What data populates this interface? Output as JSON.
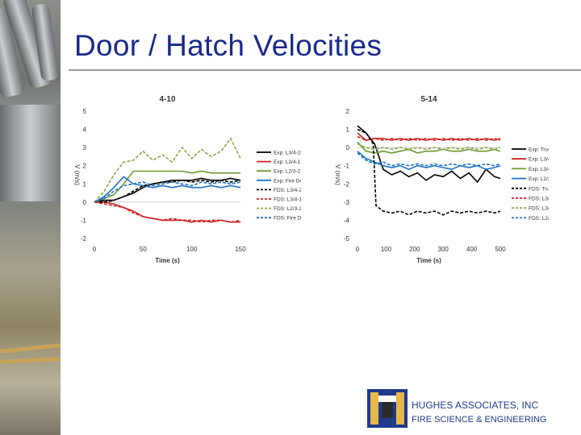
{
  "slide": {
    "title": "Door / Hatch Velocities",
    "company": "HUGHES ASSOCIATES, INC",
    "tagline": "FIRE SCIENCE & ENGINEERING"
  },
  "chart_data": [
    {
      "type": "line",
      "title": "4-10",
      "xlabel": "Time (s)",
      "ylabel": "V (m/s)",
      "xlim": [
        0,
        150
      ],
      "ylim": [
        -2,
        5
      ],
      "xticks": [
        0,
        50,
        100,
        150
      ],
      "yticks": [
        -2,
        -1,
        0,
        1,
        2,
        3,
        4,
        5
      ],
      "legend_position": "right",
      "series": [
        {
          "name": "Exp: L3/4-2B",
          "color": "#000000",
          "dash": false,
          "x": [
            0,
            10,
            20,
            30,
            40,
            50,
            60,
            70,
            80,
            90,
            100,
            110,
            120,
            130,
            140,
            150
          ],
          "y": [
            0,
            0.1,
            0.1,
            0.3,
            0.5,
            0.8,
            1.0,
            1.1,
            1.2,
            1.2,
            1.2,
            1.3,
            1.2,
            1.2,
            1.3,
            1.2
          ]
        },
        {
          "name": "Exp: L3/4-1",
          "color": "#cc1f1f",
          "dash": false,
          "x": [
            0,
            10,
            20,
            30,
            40,
            50,
            60,
            70,
            80,
            90,
            100,
            110,
            120,
            130,
            140,
            150
          ],
          "y": [
            0,
            0,
            -0.1,
            -0.3,
            -0.5,
            -0.8,
            -0.9,
            -1.0,
            -1.0,
            -1.0,
            -1.1,
            -1.0,
            -1.1,
            -1.0,
            -1.1,
            -1.1
          ]
        },
        {
          "name": "Exp: L2/3-2",
          "color": "#6f9a2e",
          "dash": false,
          "x": [
            0,
            10,
            20,
            30,
            40,
            50,
            60,
            70,
            80,
            90,
            100,
            110,
            120,
            130,
            140,
            150
          ],
          "y": [
            0,
            0.2,
            0.4,
            1.0,
            1.7,
            1.7,
            1.7,
            1.7,
            1.7,
            1.7,
            1.6,
            1.7,
            1.6,
            1.6,
            1.6,
            1.6
          ]
        },
        {
          "name": "Exp: Fire Door",
          "color": "#1f72c4",
          "dash": false,
          "x": [
            0,
            10,
            20,
            30,
            40,
            50,
            60,
            70,
            80,
            90,
            100,
            110,
            120,
            130,
            140,
            150
          ],
          "y": [
            0,
            0.3,
            0.8,
            1.4,
            1.0,
            0.9,
            0.8,
            0.9,
            0.8,
            0.9,
            0.8,
            0.8,
            0.9,
            0.8,
            0.9,
            0.8
          ]
        },
        {
          "name": "FDS: L3/4-2B",
          "color": "#000000",
          "dash": true,
          "x": [
            0,
            10,
            20,
            30,
            40,
            50,
            60,
            70,
            80,
            90,
            100,
            110,
            120,
            130,
            140,
            150
          ],
          "y": [
            0,
            0,
            0.1,
            0.3,
            0.6,
            0.9,
            1.0,
            1.1,
            1.1,
            1.2,
            1.1,
            1.2,
            1.1,
            1.2,
            1.1,
            1.2
          ]
        },
        {
          "name": "FDS: L3/4-1",
          "color": "#cc1f1f",
          "dash": true,
          "x": [
            0,
            10,
            20,
            30,
            40,
            50,
            60,
            70,
            80,
            90,
            100,
            110,
            120,
            130,
            140,
            150
          ],
          "y": [
            0,
            -0.1,
            -0.2,
            -0.3,
            -0.6,
            -0.8,
            -0.9,
            -1.0,
            -0.9,
            -1.0,
            -1.0,
            -1.1,
            -1.0,
            -1.0,
            -1.1,
            -1.0
          ]
        },
        {
          "name": "FDS: L2/3-2",
          "color": "#8aa84a",
          "dash": true,
          "x": [
            0,
            10,
            20,
            30,
            40,
            50,
            60,
            70,
            80,
            90,
            100,
            110,
            120,
            130,
            140,
            150
          ],
          "y": [
            0,
            0.6,
            1.5,
            2.2,
            2.3,
            2.8,
            2.3,
            2.6,
            2.2,
            3.0,
            2.4,
            2.9,
            2.5,
            2.8,
            3.5,
            2.4
          ]
        },
        {
          "name": "FDS: Fire Door",
          "color": "#1f72c4",
          "dash": true,
          "x": [
            0,
            10,
            20,
            30,
            40,
            50,
            60,
            70,
            80,
            90,
            100,
            110,
            120,
            130,
            140,
            150
          ],
          "y": [
            0,
            0.2,
            0.6,
            0.9,
            1.0,
            1.1,
            0.9,
            1.0,
            1.1,
            1.0,
            0.9,
            1.1,
            1.0,
            1.1,
            1.0,
            1.1
          ]
        }
      ]
    },
    {
      "type": "line",
      "title": "5-14",
      "xlabel": "Time (s)",
      "ylabel": "V (m/s)",
      "xlim": [
        0,
        500
      ],
      "ylim": [
        -5,
        2
      ],
      "xticks": [
        0,
        100,
        200,
        300,
        400,
        500
      ],
      "yticks": [
        -5,
        -4,
        -3,
        -2,
        -1,
        0,
        1,
        2
      ],
      "legend_position": "right",
      "series": [
        {
          "name": "Exp: Trunk2 Out",
          "color": "#000000",
          "dash": false,
          "x": [
            0,
            30,
            60,
            90,
            120,
            150,
            180,
            210,
            240,
            270,
            300,
            330,
            360,
            390,
            420,
            450,
            480,
            500
          ],
          "y": [
            1.2,
            0.8,
            0.2,
            -1.2,
            -1.5,
            -1.3,
            -1.6,
            -1.4,
            -1.8,
            -1.5,
            -1.6,
            -1.3,
            -1.7,
            -1.4,
            -1.9,
            -1.2,
            -1.6,
            -1.7
          ]
        },
        {
          "name": "Exp: L3/4-2B",
          "color": "#cc1f1f",
          "dash": false,
          "x": [
            0,
            30,
            60,
            90,
            120,
            150,
            180,
            210,
            240,
            270,
            300,
            330,
            360,
            390,
            420,
            450,
            480,
            500
          ],
          "y": [
            0.8,
            0.4,
            0.5,
            0.5,
            0.4,
            0.5,
            0.4,
            0.5,
            0.4,
            0.5,
            0.4,
            0.5,
            0.4,
            0.5,
            0.4,
            0.5,
            0.4,
            0.5
          ]
        },
        {
          "name": "Exp: L3/4-1",
          "color": "#6f9a2e",
          "dash": false,
          "x": [
            0,
            30,
            60,
            90,
            120,
            150,
            180,
            210,
            240,
            270,
            300,
            330,
            360,
            390,
            420,
            450,
            480,
            500
          ],
          "y": [
            0.3,
            -0.2,
            -0.3,
            -0.2,
            -0.3,
            -0.2,
            -0.1,
            -0.3,
            -0.2,
            -0.2,
            -0.1,
            -0.2,
            -0.2,
            -0.1,
            -0.2,
            -0.2,
            -0.1,
            -0.2
          ]
        },
        {
          "name": "Exp: L2/3-2",
          "color": "#1f72c4",
          "dash": false,
          "x": [
            0,
            30,
            60,
            90,
            120,
            150,
            180,
            210,
            240,
            270,
            300,
            330,
            360,
            390,
            420,
            450,
            480,
            500
          ],
          "y": [
            -0.2,
            -0.6,
            -0.8,
            -1.0,
            -1.1,
            -1.0,
            -1.2,
            -1.0,
            -1.1,
            -1.0,
            -1.1,
            -1.2,
            -1.0,
            -1.1,
            -1.0,
            -1.2,
            -1.1,
            -1.0
          ]
        },
        {
          "name": "FDS: Trunk2 Out",
          "color": "#000000",
          "dash": true,
          "x": [
            0,
            30,
            55,
            65,
            90,
            120,
            150,
            180,
            210,
            240,
            270,
            300,
            330,
            360,
            390,
            420,
            450,
            480,
            500
          ],
          "y": [
            1.0,
            0.8,
            0.2,
            -3.2,
            -3.5,
            -3.6,
            -3.5,
            -3.7,
            -3.5,
            -3.6,
            -3.5,
            -3.7,
            -3.5,
            -3.6,
            -3.5,
            -3.6,
            -3.5,
            -3.6,
            -3.5
          ]
        },
        {
          "name": "FDS: L3/4-2B",
          "color": "#cc1f1f",
          "dash": true,
          "x": [
            0,
            30,
            60,
            90,
            120,
            150,
            180,
            210,
            240,
            270,
            300,
            330,
            360,
            390,
            420,
            450,
            480,
            500
          ],
          "y": [
            0.6,
            0.4,
            0.5,
            0.4,
            0.5,
            0.4,
            0.5,
            0.4,
            0.5,
            0.4,
            0.5,
            0.4,
            0.5,
            0.4,
            0.5,
            0.4,
            0.5,
            0.4
          ]
        },
        {
          "name": "FDS: L3/4-1",
          "color": "#8aa84a",
          "dash": true,
          "x": [
            0,
            30,
            60,
            90,
            120,
            150,
            180,
            210,
            240,
            270,
            300,
            330,
            360,
            390,
            420,
            450,
            480,
            500
          ],
          "y": [
            0.2,
            0,
            -0.1,
            0,
            -0.1,
            0,
            -0.1,
            0,
            -0.1,
            0,
            -0.1,
            0,
            -0.1,
            0,
            -0.1,
            0,
            -0.1,
            0
          ]
        },
        {
          "name": "FDS: L2/3-2",
          "color": "#1f72c4",
          "dash": true,
          "x": [
            0,
            30,
            60,
            90,
            120,
            150,
            180,
            210,
            240,
            270,
            300,
            330,
            360,
            390,
            420,
            450,
            480,
            500
          ],
          "y": [
            -0.3,
            -0.7,
            -0.9,
            -0.8,
            -1.0,
            -0.9,
            -1.0,
            -0.9,
            -1.0,
            -0.9,
            -1.0,
            -0.9,
            -1.0,
            -0.9,
            -1.0,
            -0.9,
            -1.0,
            -0.9
          ]
        }
      ]
    }
  ]
}
